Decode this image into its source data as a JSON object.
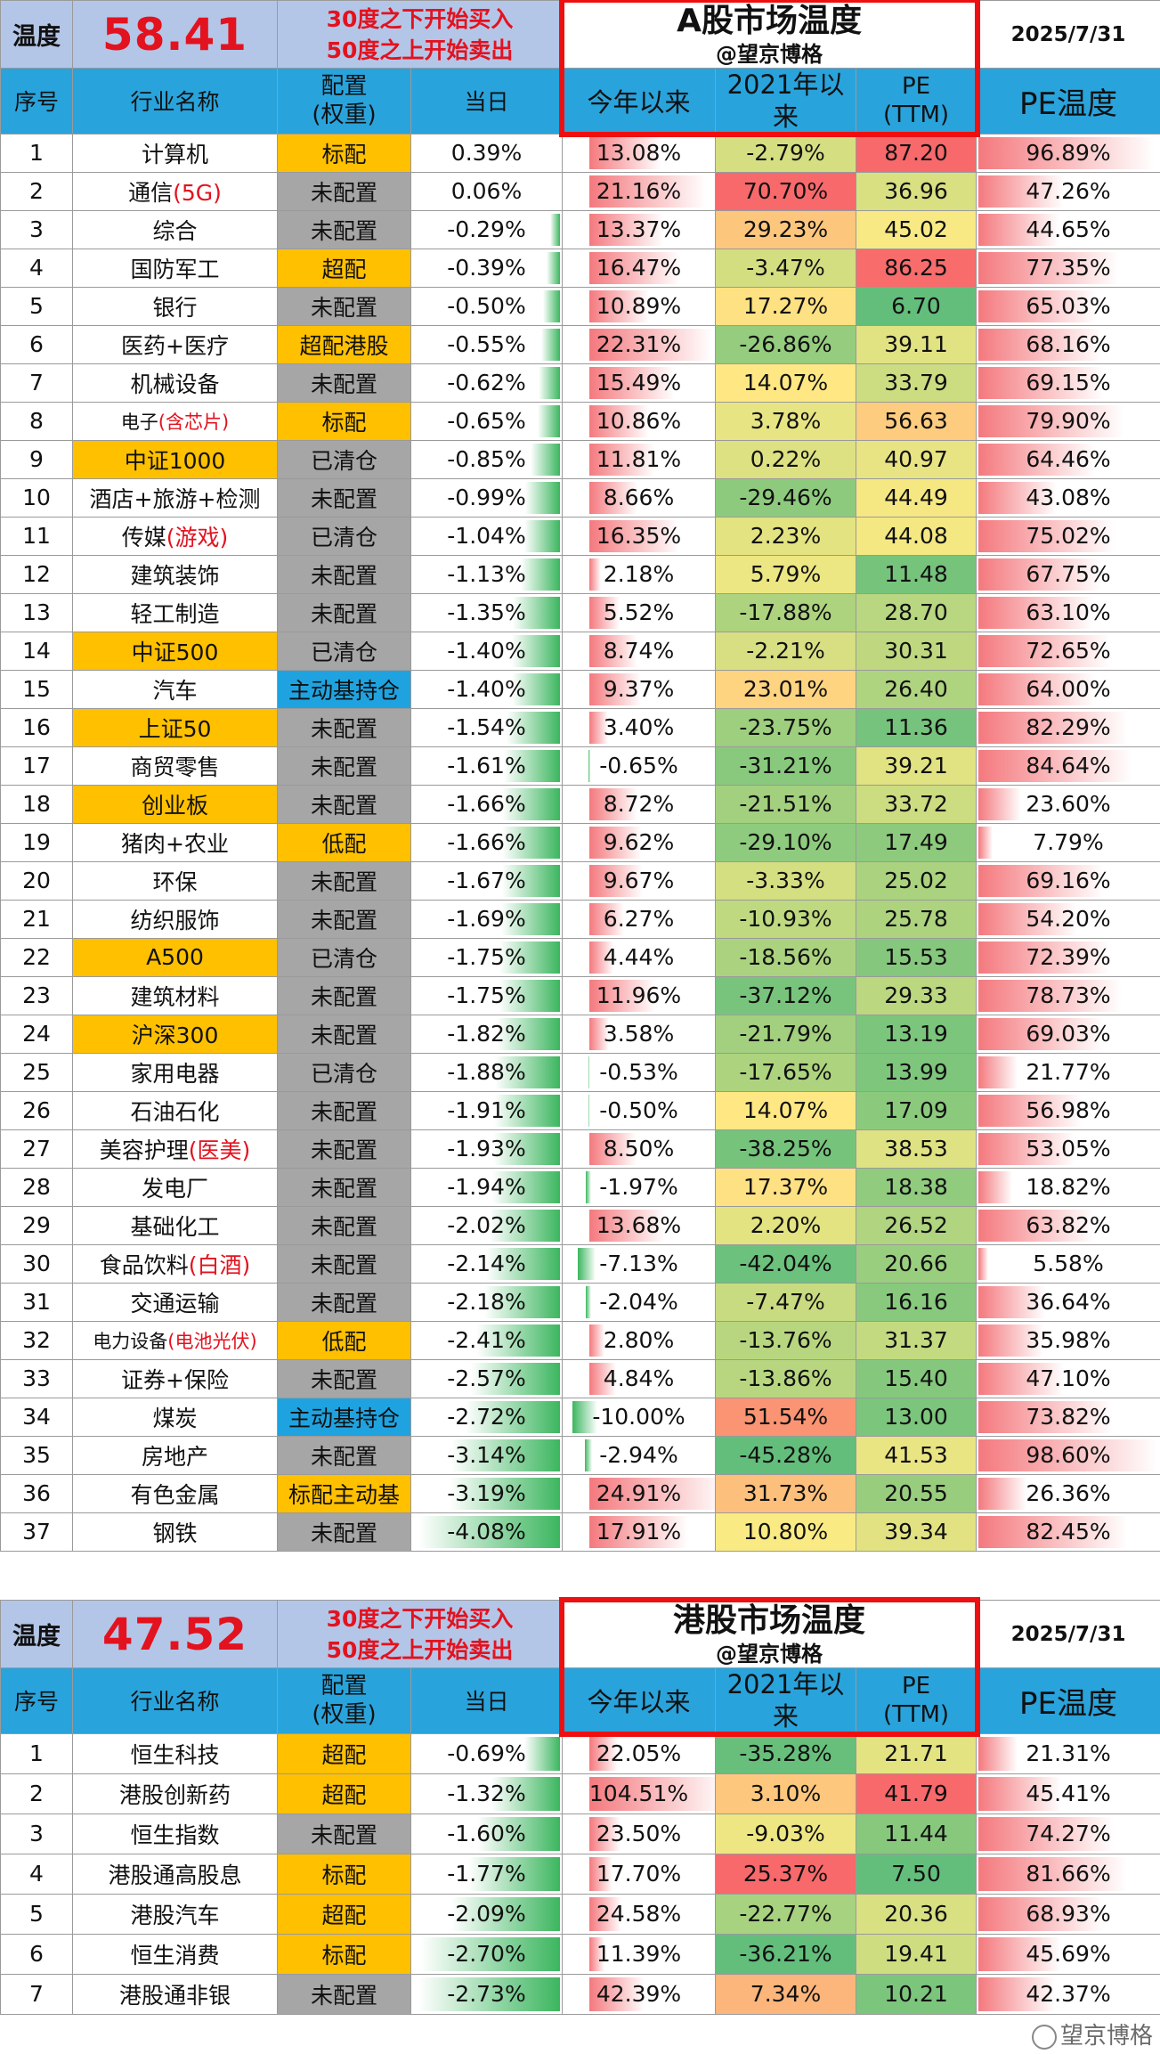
{
  "a_share": {
    "temp_label": "温度",
    "temperature": "58.41",
    "signal": [
      "30度之下开始买入",
      "50度之上开始卖出"
    ],
    "title": "A股市场温度",
    "subtitle": "@望京博格",
    "date": "2025/7/31",
    "headers": [
      "序号",
      "行业名称",
      "配置\n(权重)",
      "当日",
      "今年以来",
      "2021年以来",
      "PE\n(TTM)",
      "PE温度"
    ],
    "rows": [
      {
        "no": "1",
        "name": "计算机",
        "red": "",
        "hl": false,
        "alloc": "标配",
        "ac": "og",
        "day": "0.39%",
        "ytd": "13.08%",
        "since2021": "-2.79%",
        "pe": "87.20",
        "pet": "96.89%"
      },
      {
        "no": "2",
        "name": "通信",
        "red": "(5G)",
        "hl": false,
        "alloc": "未配置",
        "ac": "gy",
        "day": "0.06%",
        "ytd": "21.16%",
        "since2021": "70.70%",
        "pe": "36.96",
        "pet": "47.26%"
      },
      {
        "no": "3",
        "name": "综合",
        "red": "",
        "hl": false,
        "alloc": "未配置",
        "ac": "gy",
        "day": "-0.29%",
        "ytd": "13.37%",
        "since2021": "29.23%",
        "pe": "45.02",
        "pet": "44.65%"
      },
      {
        "no": "4",
        "name": "国防军工",
        "red": "",
        "hl": false,
        "alloc": "超配",
        "ac": "og",
        "day": "-0.39%",
        "ytd": "16.47%",
        "since2021": "-3.47%",
        "pe": "86.25",
        "pet": "77.35%"
      },
      {
        "no": "5",
        "name": "银行",
        "red": "",
        "hl": false,
        "alloc": "未配置",
        "ac": "gy",
        "day": "-0.50%",
        "ytd": "10.89%",
        "since2021": "17.27%",
        "pe": "6.70",
        "pet": "65.03%"
      },
      {
        "no": "6",
        "name": "医药+医疗",
        "red": "",
        "hl": false,
        "alloc": "超配港股",
        "ac": "og",
        "day": "-0.55%",
        "ytd": "22.31%",
        "since2021": "-26.86%",
        "pe": "39.11",
        "pet": "68.16%"
      },
      {
        "no": "7",
        "name": "机械设备",
        "red": "",
        "hl": false,
        "alloc": "未配置",
        "ac": "gy",
        "day": "-0.62%",
        "ytd": "15.49%",
        "since2021": "14.07%",
        "pe": "33.79",
        "pet": "69.15%"
      },
      {
        "no": "8",
        "name": "电子",
        "red": "(含芯片)",
        "hl": false,
        "alloc": "标配",
        "ac": "og",
        "day": "-0.65%",
        "ytd": "10.86%",
        "since2021": "3.78%",
        "pe": "56.63",
        "pet": "79.90%"
      },
      {
        "no": "9",
        "name": "中证1000",
        "red": "",
        "hl": true,
        "alloc": "已清仓",
        "ac": "gy",
        "day": "-0.85%",
        "ytd": "11.81%",
        "since2021": "0.22%",
        "pe": "40.97",
        "pet": "64.46%"
      },
      {
        "no": "10",
        "name": "酒店+旅游+检测",
        "red": "",
        "hl": false,
        "alloc": "未配置",
        "ac": "gy",
        "day": "-0.99%",
        "ytd": "8.66%",
        "since2021": "-29.46%",
        "pe": "44.49",
        "pet": "43.08%"
      },
      {
        "no": "11",
        "name": "传媒",
        "red": "(游戏)",
        "hl": false,
        "alloc": "已清仓",
        "ac": "gy",
        "day": "-1.04%",
        "ytd": "16.35%",
        "since2021": "2.23%",
        "pe": "44.08",
        "pet": "75.02%"
      },
      {
        "no": "12",
        "name": "建筑装饰",
        "red": "",
        "hl": false,
        "alloc": "未配置",
        "ac": "gy",
        "day": "-1.13%",
        "ytd": "2.18%",
        "since2021": "5.79%",
        "pe": "11.48",
        "pet": "67.75%"
      },
      {
        "no": "13",
        "name": "轻工制造",
        "red": "",
        "hl": false,
        "alloc": "未配置",
        "ac": "gy",
        "day": "-1.35%",
        "ytd": "5.52%",
        "since2021": "-17.88%",
        "pe": "28.70",
        "pet": "63.10%"
      },
      {
        "no": "14",
        "name": "中证500",
        "red": "",
        "hl": true,
        "alloc": "已清仓",
        "ac": "gy",
        "day": "-1.40%",
        "ytd": "8.74%",
        "since2021": "-2.21%",
        "pe": "30.31",
        "pet": "72.65%"
      },
      {
        "no": "15",
        "name": "汽车",
        "red": "",
        "hl": false,
        "alloc": "主动基持仓",
        "ac": "bl",
        "day": "-1.40%",
        "ytd": "9.37%",
        "since2021": "23.01%",
        "pe": "26.40",
        "pet": "64.00%"
      },
      {
        "no": "16",
        "name": "上证50",
        "red": "",
        "hl": true,
        "alloc": "未配置",
        "ac": "gy",
        "day": "-1.54%",
        "ytd": "3.40%",
        "since2021": "-23.75%",
        "pe": "11.36",
        "pet": "82.29%"
      },
      {
        "no": "17",
        "name": "商贸零售",
        "red": "",
        "hl": false,
        "alloc": "未配置",
        "ac": "gy",
        "day": "-1.61%",
        "ytd": "-0.65%",
        "since2021": "-31.21%",
        "pe": "39.21",
        "pet": "84.64%"
      },
      {
        "no": "18",
        "name": "创业板",
        "red": "",
        "hl": true,
        "alloc": "未配置",
        "ac": "gy",
        "day": "-1.66%",
        "ytd": "8.72%",
        "since2021": "-21.51%",
        "pe": "33.72",
        "pet": "23.60%"
      },
      {
        "no": "19",
        "name": "猪肉+农业",
        "red": "",
        "hl": false,
        "alloc": "低配",
        "ac": "og",
        "day": "-1.66%",
        "ytd": "9.62%",
        "since2021": "-29.10%",
        "pe": "17.49",
        "pet": "7.79%"
      },
      {
        "no": "20",
        "name": "环保",
        "red": "",
        "hl": false,
        "alloc": "未配置",
        "ac": "gy",
        "day": "-1.67%",
        "ytd": "9.67%",
        "since2021": "-3.33%",
        "pe": "25.02",
        "pet": "69.16%"
      },
      {
        "no": "21",
        "name": "纺织服饰",
        "red": "",
        "hl": false,
        "alloc": "未配置",
        "ac": "gy",
        "day": "-1.69%",
        "ytd": "6.27%",
        "since2021": "-10.93%",
        "pe": "25.78",
        "pet": "54.20%"
      },
      {
        "no": "22",
        "name": "A500",
        "red": "",
        "hl": true,
        "alloc": "已清仓",
        "ac": "gy",
        "day": "-1.75%",
        "ytd": "4.44%",
        "since2021": "-18.56%",
        "pe": "15.53",
        "pet": "72.39%"
      },
      {
        "no": "23",
        "name": "建筑材料",
        "red": "",
        "hl": false,
        "alloc": "未配置",
        "ac": "gy",
        "day": "-1.75%",
        "ytd": "11.96%",
        "since2021": "-37.12%",
        "pe": "29.33",
        "pet": "78.73%"
      },
      {
        "no": "24",
        "name": "沪深300",
        "red": "",
        "hl": true,
        "alloc": "未配置",
        "ac": "gy",
        "day": "-1.82%",
        "ytd": "3.58%",
        "since2021": "-21.79%",
        "pe": "13.19",
        "pet": "69.03%"
      },
      {
        "no": "25",
        "name": "家用电器",
        "red": "",
        "hl": false,
        "alloc": "已清仓",
        "ac": "gy",
        "day": "-1.88%",
        "ytd": "-0.53%",
        "since2021": "-17.65%",
        "pe": "13.99",
        "pet": "21.77%"
      },
      {
        "no": "26",
        "name": "石油石化",
        "red": "",
        "hl": false,
        "alloc": "未配置",
        "ac": "gy",
        "day": "-1.91%",
        "ytd": "-0.50%",
        "since2021": "14.07%",
        "pe": "17.09",
        "pet": "56.98%"
      },
      {
        "no": "27",
        "name": "美容护理",
        "red": "(医美)",
        "hl": false,
        "alloc": "未配置",
        "ac": "gy",
        "day": "-1.93%",
        "ytd": "8.50%",
        "since2021": "-38.25%",
        "pe": "38.53",
        "pet": "53.05%"
      },
      {
        "no": "28",
        "name": "发电厂",
        "red": "",
        "hl": false,
        "alloc": "未配置",
        "ac": "gy",
        "day": "-1.94%",
        "ytd": "-1.97%",
        "since2021": "17.37%",
        "pe": "18.38",
        "pet": "18.82%"
      },
      {
        "no": "29",
        "name": "基础化工",
        "red": "",
        "hl": false,
        "alloc": "未配置",
        "ac": "gy",
        "day": "-2.02%",
        "ytd": "13.68%",
        "since2021": "2.20%",
        "pe": "26.52",
        "pet": "63.82%"
      },
      {
        "no": "30",
        "name": "食品饮料",
        "red": "(白酒)",
        "hl": false,
        "alloc": "未配置",
        "ac": "gy",
        "day": "-2.14%",
        "ytd": "-7.13%",
        "since2021": "-42.04%",
        "pe": "20.66",
        "pet": "5.58%"
      },
      {
        "no": "31",
        "name": "交通运输",
        "red": "",
        "hl": false,
        "alloc": "未配置",
        "ac": "gy",
        "day": "-2.18%",
        "ytd": "-2.04%",
        "since2021": "-7.47%",
        "pe": "16.16",
        "pet": "36.64%"
      },
      {
        "no": "32",
        "name": "电力设备",
        "red": "(电池光伏)",
        "hl": false,
        "alloc": "低配",
        "ac": "og",
        "day": "-2.41%",
        "ytd": "2.80%",
        "since2021": "-13.76%",
        "pe": "31.37",
        "pet": "35.98%"
      },
      {
        "no": "33",
        "name": "证券+保险",
        "red": "",
        "hl": false,
        "alloc": "未配置",
        "ac": "gy",
        "day": "-2.57%",
        "ytd": "4.84%",
        "since2021": "-13.86%",
        "pe": "15.40",
        "pet": "47.10%"
      },
      {
        "no": "34",
        "name": "煤炭",
        "red": "",
        "hl": false,
        "alloc": "主动基持仓",
        "ac": "bl",
        "day": "-2.72%",
        "ytd": "-10.00%",
        "since2021": "51.54%",
        "pe": "13.00",
        "pet": "73.82%"
      },
      {
        "no": "35",
        "name": "房地产",
        "red": "",
        "hl": false,
        "alloc": "未配置",
        "ac": "gy",
        "day": "-3.14%",
        "ytd": "-2.94%",
        "since2021": "-45.28%",
        "pe": "41.53",
        "pet": "98.60%"
      },
      {
        "no": "36",
        "name": "有色金属",
        "red": "",
        "hl": false,
        "alloc": "标配主动基",
        "ac": "og",
        "day": "-3.19%",
        "ytd": "24.91%",
        "since2021": "31.73%",
        "pe": "20.55",
        "pet": "26.36%"
      },
      {
        "no": "37",
        "name": "钢铁",
        "red": "",
        "hl": false,
        "alloc": "未配置",
        "ac": "gy",
        "day": "-4.08%",
        "ytd": "17.91%",
        "since2021": "10.80%",
        "pe": "39.34",
        "pet": "82.45%"
      }
    ]
  },
  "hk": {
    "temp_label": "温度",
    "temperature": "47.52",
    "signal": [
      "30度之下开始买入",
      "50度之上开始卖出"
    ],
    "title": "港股市场温度",
    "subtitle": "@望京博格",
    "date": "2025/7/31",
    "headers": [
      "序号",
      "行业名称",
      "配置\n(权重)",
      "当日",
      "今年以来",
      "2021年以\n来",
      "PE\n(TTM)",
      "PE温度"
    ],
    "rows": [
      {
        "no": "1",
        "name": "恒生科技",
        "red": "",
        "hl": false,
        "alloc": "超配",
        "ac": "og",
        "day": "-0.69%",
        "ytd": "22.05%",
        "since2021": "-35.28%",
        "pe": "21.71",
        "pet": "21.31%"
      },
      {
        "no": "2",
        "name": "港股创新药",
        "red": "",
        "hl": false,
        "alloc": "超配",
        "ac": "og",
        "day": "-1.32%",
        "ytd": "104.51%",
        "since2021": "3.10%",
        "pe": "41.79",
        "pet": "45.41%"
      },
      {
        "no": "3",
        "name": "恒生指数",
        "red": "",
        "hl": false,
        "alloc": "未配置",
        "ac": "gy",
        "day": "-1.60%",
        "ytd": "23.50%",
        "since2021": "-9.03%",
        "pe": "11.44",
        "pet": "74.27%"
      },
      {
        "no": "4",
        "name": "港股通高股息",
        "red": "",
        "hl": false,
        "alloc": "标配",
        "ac": "og",
        "day": "-1.77%",
        "ytd": "17.70%",
        "since2021": "25.37%",
        "pe": "7.50",
        "pet": "81.66%"
      },
      {
        "no": "5",
        "name": "港股汽车",
        "red": "",
        "hl": false,
        "alloc": "超配",
        "ac": "og",
        "day": "-2.09%",
        "ytd": "24.58%",
        "since2021": "-22.77%",
        "pe": "20.36",
        "pet": "68.93%"
      },
      {
        "no": "6",
        "name": "恒生消费",
        "red": "",
        "hl": false,
        "alloc": "标配",
        "ac": "og",
        "day": "-2.70%",
        "ytd": "11.39%",
        "since2021": "-36.21%",
        "pe": "19.41",
        "pet": "45.69%"
      },
      {
        "no": "7",
        "name": "港股通非银",
        "red": "",
        "hl": false,
        "alloc": "未配置",
        "ac": "gy",
        "day": "-2.73%",
        "ytd": "42.39%",
        "since2021": "7.34%",
        "pe": "10.21",
        "pet": "42.37%"
      }
    ]
  },
  "watermark": "望京博格"
}
